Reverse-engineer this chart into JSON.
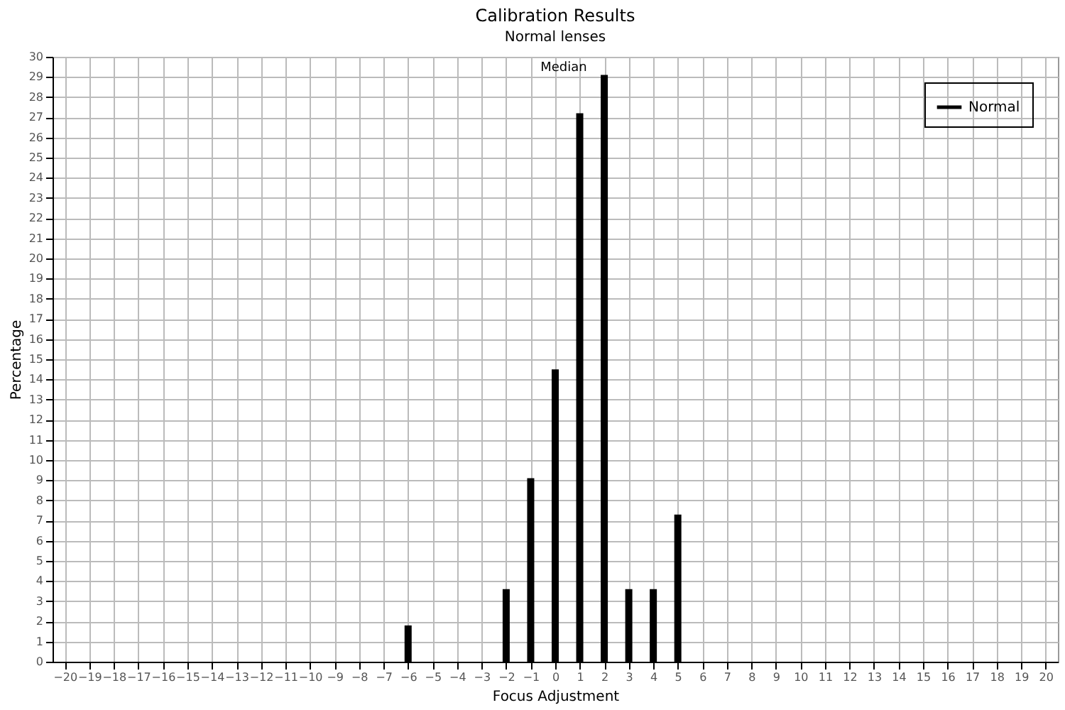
{
  "chart_data": {
    "type": "bar",
    "title": "Calibration Results",
    "subtitle": "Normal lenses",
    "xlabel": "Focus Adjustment",
    "ylabel": "Percentage",
    "x": [
      -6,
      -2,
      -1,
      0,
      1,
      2,
      3,
      4,
      5
    ],
    "series": [
      {
        "name": "Normal",
        "color": "#000000",
        "values": [
          1.8,
          3.6,
          9.1,
          14.5,
          27.2,
          29.1,
          3.6,
          3.6,
          7.3
        ]
      }
    ],
    "annotations": [
      "Median"
    ],
    "xlim": [
      -20.5,
      20.5
    ],
    "xticks": [
      -20,
      -19,
      -18,
      -17,
      -16,
      -15,
      -14,
      -13,
      -12,
      -11,
      -10,
      -9,
      -8,
      -7,
      -6,
      -5,
      -4,
      -3,
      -2,
      -1,
      0,
      1,
      2,
      3,
      4,
      5,
      6,
      7,
      8,
      9,
      10,
      11,
      12,
      13,
      14,
      15,
      16,
      17,
      18,
      19,
      20
    ],
    "ylim": [
      0,
      30
    ],
    "yticks": [
      0,
      1,
      2,
      3,
      4,
      5,
      6,
      7,
      8,
      9,
      10,
      11,
      12,
      13,
      14,
      15,
      16,
      17,
      18,
      19,
      20,
      21,
      22,
      23,
      24,
      25,
      26,
      27,
      28,
      29,
      30
    ],
    "grid": true,
    "legend": "top right"
  }
}
